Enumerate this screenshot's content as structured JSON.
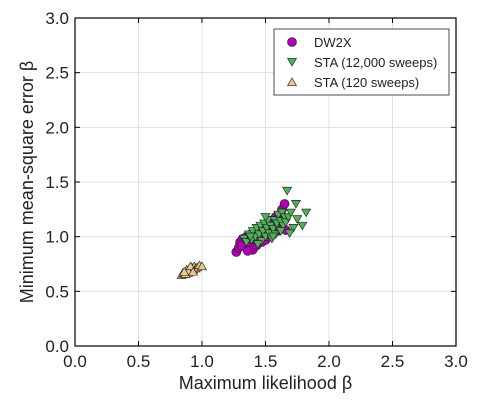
{
  "chart_data": {
    "type": "scatter",
    "xlabel": "Maximum likelihood β",
    "ylabel": "Minimum mean-square error β",
    "xlim": [
      0.0,
      3.0
    ],
    "ylim": [
      0.0,
      3.0
    ],
    "xticks": [
      "0.0",
      "0.5",
      "1.0",
      "1.5",
      "2.0",
      "2.5",
      "3.0"
    ],
    "yticks": [
      "0.0",
      "0.5",
      "1.0",
      "1.5",
      "2.0",
      "2.5",
      "3.0"
    ],
    "grid": true,
    "legend_position": "top-right",
    "series": [
      {
        "name": "DW2X",
        "marker": "circle",
        "color": "#b000b5",
        "points": [
          [
            1.27,
            0.86
          ],
          [
            1.29,
            0.9
          ],
          [
            1.3,
            0.95
          ],
          [
            1.32,
            0.98
          ],
          [
            1.34,
            0.93
          ],
          [
            1.35,
            1.0
          ],
          [
            1.37,
            0.95
          ],
          [
            1.38,
            1.02
          ],
          [
            1.4,
            0.88
          ],
          [
            1.41,
            0.97
          ],
          [
            1.42,
            1.03
          ],
          [
            1.43,
            0.92
          ],
          [
            1.44,
            1.06
          ],
          [
            1.45,
            0.99
          ],
          [
            1.46,
            1.08
          ],
          [
            1.47,
            0.95
          ],
          [
            1.48,
            1.02
          ],
          [
            1.49,
            1.1
          ],
          [
            1.5,
            0.97
          ],
          [
            1.51,
            1.05
          ],
          [
            1.52,
            1.12
          ],
          [
            1.53,
            1.0
          ],
          [
            1.54,
            1.08
          ],
          [
            1.55,
            1.15
          ],
          [
            1.56,
            1.03
          ],
          [
            1.57,
            1.11
          ],
          [
            1.58,
            1.18
          ],
          [
            1.59,
            1.05
          ],
          [
            1.6,
            1.13
          ],
          [
            1.61,
            1.2
          ],
          [
            1.62,
            1.08
          ],
          [
            1.63,
            1.25
          ],
          [
            1.65,
            1.3
          ],
          [
            1.64,
            1.15
          ],
          [
            1.36,
            0.87
          ],
          [
            1.44,
            0.96
          ],
          [
            1.52,
            1.03
          ],
          [
            1.58,
            1.09
          ],
          [
            1.66,
            1.06
          ],
          [
            1.31,
            0.92
          ]
        ]
      },
      {
        "name": "STA (12,000 sweeps)",
        "marker": "triangle-down",
        "color": "#4db356",
        "points": [
          [
            1.33,
            0.98
          ],
          [
            1.35,
            0.95
          ],
          [
            1.37,
            1.02
          ],
          [
            1.39,
            0.97
          ],
          [
            1.4,
            1.05
          ],
          [
            1.42,
            1.0
          ],
          [
            1.43,
            1.08
          ],
          [
            1.45,
            1.02
          ],
          [
            1.46,
            1.1
          ],
          [
            1.47,
            0.96
          ],
          [
            1.48,
            1.05
          ],
          [
            1.49,
            1.12
          ],
          [
            1.5,
            1.0
          ],
          [
            1.51,
            1.08
          ],
          [
            1.52,
            1.15
          ],
          [
            1.53,
            1.03
          ],
          [
            1.54,
            1.1
          ],
          [
            1.55,
            0.98
          ],
          [
            1.56,
            1.07
          ],
          [
            1.57,
            1.15
          ],
          [
            1.58,
            1.02
          ],
          [
            1.59,
            1.12
          ],
          [
            1.6,
            1.2
          ],
          [
            1.61,
            1.06
          ],
          [
            1.62,
            1.14
          ],
          [
            1.63,
            1.22
          ],
          [
            1.64,
            1.1
          ],
          [
            1.65,
            1.18
          ],
          [
            1.66,
            1.13
          ],
          [
            1.68,
            1.18
          ],
          [
            1.7,
            1.22
          ],
          [
            1.72,
            1.08
          ],
          [
            1.75,
            1.16
          ],
          [
            1.79,
            1.1
          ],
          [
            1.82,
            1.22
          ],
          [
            1.69,
            1.03
          ],
          [
            1.74,
            1.3
          ],
          [
            1.67,
            1.42
          ],
          [
            1.44,
            0.93
          ],
          [
            1.38,
            1.0
          ],
          [
            1.56,
            1.0
          ],
          [
            1.62,
            1.05
          ],
          [
            1.5,
            1.18
          ]
        ]
      },
      {
        "name": "STA (120 sweeps)",
        "marker": "triangle-up",
        "color": "#e8c88e",
        "points": [
          [
            0.84,
            0.65
          ],
          [
            0.85,
            0.67
          ],
          [
            0.86,
            0.66
          ],
          [
            0.87,
            0.68
          ],
          [
            0.88,
            0.7
          ],
          [
            0.89,
            0.67
          ],
          [
            0.9,
            0.71
          ],
          [
            0.91,
            0.69
          ],
          [
            0.92,
            0.72
          ],
          [
            0.93,
            0.7
          ],
          [
            0.94,
            0.73
          ],
          [
            0.95,
            0.71
          ],
          [
            0.96,
            0.72
          ],
          [
            0.98,
            0.74
          ],
          [
            1.0,
            0.73
          ],
          [
            0.87,
            0.66
          ],
          [
            0.89,
            0.69
          ],
          [
            0.91,
            0.73
          ],
          [
            0.93,
            0.68
          ],
          [
            0.86,
            0.68
          ]
        ]
      }
    ]
  }
}
